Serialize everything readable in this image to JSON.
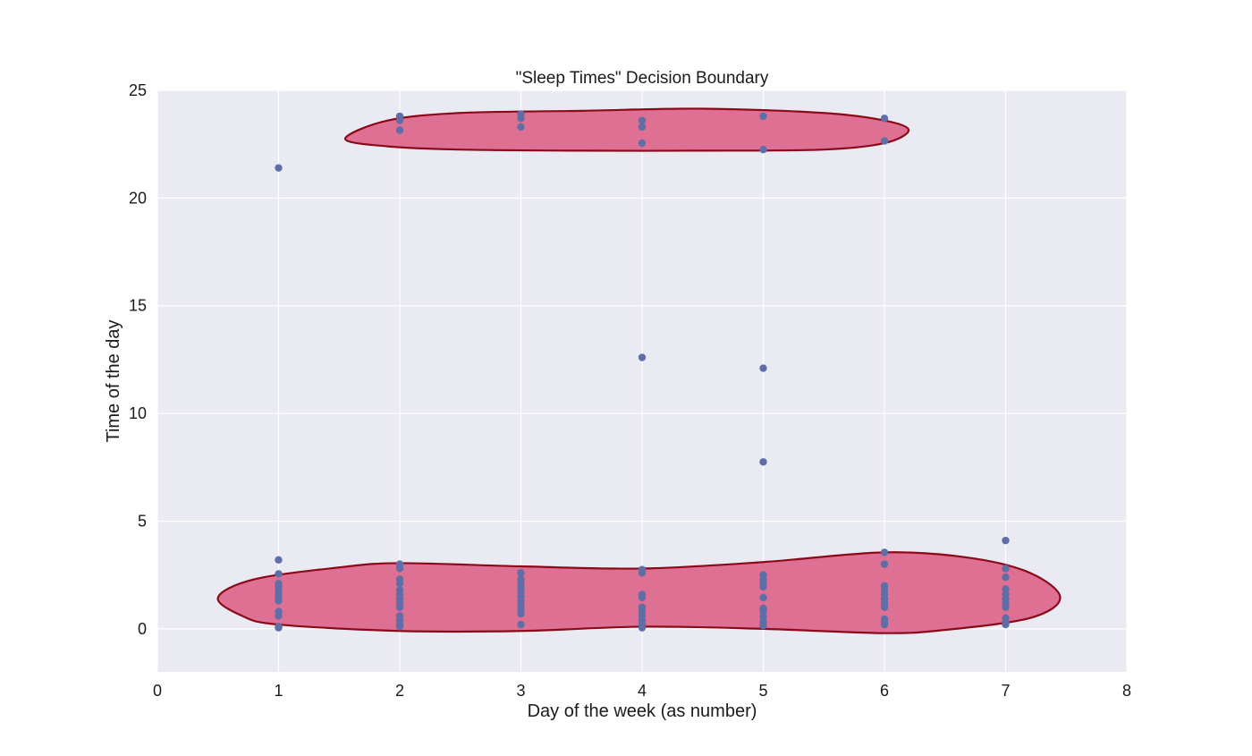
{
  "chart_data": {
    "type": "scatter",
    "title": "\"Sleep Times\" Decision Boundary",
    "xlabel": "Day of the week (as number)",
    "ylabel": "Time of the day",
    "xlim": [
      0,
      8
    ],
    "ylim": [
      -2,
      25
    ],
    "xticks": [
      "0",
      "1",
      "2",
      "3",
      "4",
      "5",
      "6",
      "7",
      "8"
    ],
    "yticks": [
      "0",
      "5",
      "10",
      "15",
      "20",
      "25"
    ],
    "grid": true,
    "colors": {
      "background": "#eaeaf2",
      "grid": "#ffffff",
      "points": "#5f6ea6",
      "boundary_fill": "#de7093",
      "boundary_edge": "#8b0a1a"
    },
    "points": [
      [
        1,
        21.4
      ],
      [
        1,
        3.2
      ],
      [
        1,
        2.55
      ],
      [
        1,
        2.1
      ],
      [
        1,
        2.0
      ],
      [
        1,
        1.8
      ],
      [
        1,
        1.6
      ],
      [
        1,
        1.4
      ],
      [
        1,
        1.3
      ],
      [
        1,
        0.8
      ],
      [
        1,
        0.6
      ],
      [
        1,
        0.1
      ],
      [
        1,
        0.05
      ],
      [
        2,
        23.8
      ],
      [
        2,
        23.6
      ],
      [
        2,
        23.15
      ],
      [
        2,
        3.0
      ],
      [
        2,
        2.8
      ],
      [
        2,
        2.3
      ],
      [
        2,
        2.1
      ],
      [
        2,
        1.8
      ],
      [
        2,
        1.6
      ],
      [
        2,
        1.4
      ],
      [
        2,
        1.2
      ],
      [
        2,
        1.0
      ],
      [
        2,
        0.6
      ],
      [
        2,
        0.4
      ],
      [
        2,
        0.2
      ],
      [
        2,
        0.1
      ],
      [
        3,
        23.9
      ],
      [
        3,
        23.7
      ],
      [
        3,
        23.3
      ],
      [
        3,
        2.6
      ],
      [
        3,
        2.3
      ],
      [
        3,
        2.1
      ],
      [
        3,
        1.9
      ],
      [
        3,
        1.7
      ],
      [
        3,
        1.5
      ],
      [
        3,
        1.3
      ],
      [
        3,
        1.1
      ],
      [
        3,
        0.9
      ],
      [
        3,
        0.7
      ],
      [
        3,
        0.2
      ],
      [
        4,
        23.6
      ],
      [
        4,
        23.3
      ],
      [
        4,
        22.55
      ],
      [
        4,
        12.6
      ],
      [
        4,
        2.75
      ],
      [
        4,
        2.6
      ],
      [
        4,
        1.6
      ],
      [
        4,
        1.45
      ],
      [
        4,
        1.0
      ],
      [
        4,
        0.8
      ],
      [
        4,
        0.6
      ],
      [
        4,
        0.4
      ],
      [
        4,
        0.2
      ],
      [
        4,
        0.05
      ],
      [
        5,
        23.8
      ],
      [
        5,
        22.25
      ],
      [
        5,
        12.1
      ],
      [
        5,
        7.75
      ],
      [
        5,
        2.5
      ],
      [
        5,
        2.3
      ],
      [
        5,
        2.1
      ],
      [
        5,
        1.95
      ],
      [
        5,
        1.45
      ],
      [
        5,
        0.95
      ],
      [
        5,
        0.8
      ],
      [
        5,
        0.55
      ],
      [
        5,
        0.3
      ],
      [
        5,
        0.15
      ],
      [
        6,
        23.7
      ],
      [
        6,
        22.65
      ],
      [
        6,
        3.55
      ],
      [
        6,
        3.0
      ],
      [
        6,
        2.0
      ],
      [
        6,
        1.8
      ],
      [
        6,
        1.6
      ],
      [
        6,
        1.4
      ],
      [
        6,
        1.2
      ],
      [
        6,
        1.0
      ],
      [
        6,
        0.45
      ],
      [
        6,
        0.3
      ],
      [
        6,
        0.2
      ],
      [
        7,
        4.1
      ],
      [
        7,
        2.8
      ],
      [
        7,
        2.4
      ],
      [
        7,
        1.85
      ],
      [
        7,
        1.6
      ],
      [
        7,
        1.4
      ],
      [
        7,
        1.2
      ],
      [
        7,
        1.0
      ],
      [
        7,
        0.5
      ],
      [
        7,
        0.3
      ],
      [
        7,
        0.2
      ]
    ],
    "decision_regions": [
      {
        "outline": [
          [
            1.55,
            22.75
          ],
          [
            1.9,
            23.6
          ],
          [
            2.5,
            23.95
          ],
          [
            3.5,
            24.05
          ],
          [
            4.5,
            24.15
          ],
          [
            5.5,
            23.95
          ],
          [
            6.0,
            23.6
          ],
          [
            6.2,
            23.15
          ],
          [
            6.0,
            22.55
          ],
          [
            5.5,
            22.25
          ],
          [
            4.5,
            22.2
          ],
          [
            3.5,
            22.2
          ],
          [
            2.5,
            22.25
          ],
          [
            1.9,
            22.4
          ]
        ]
      },
      {
        "outline": [
          [
            0.5,
            1.45
          ],
          [
            0.8,
            2.3
          ],
          [
            1.5,
            2.85
          ],
          [
            2.0,
            3.05
          ],
          [
            3.0,
            2.9
          ],
          [
            4.0,
            2.8
          ],
          [
            5.0,
            3.1
          ],
          [
            6.0,
            3.55
          ],
          [
            6.7,
            3.3
          ],
          [
            7.2,
            2.6
          ],
          [
            7.45,
            1.45
          ],
          [
            7.2,
            0.5
          ],
          [
            6.5,
            -0.05
          ],
          [
            6.0,
            -0.2
          ],
          [
            5.0,
            0.0
          ],
          [
            4.0,
            0.1
          ],
          [
            3.0,
            -0.1
          ],
          [
            2.0,
            -0.1
          ],
          [
            1.0,
            0.2
          ],
          [
            0.7,
            0.6
          ]
        ]
      }
    ]
  }
}
